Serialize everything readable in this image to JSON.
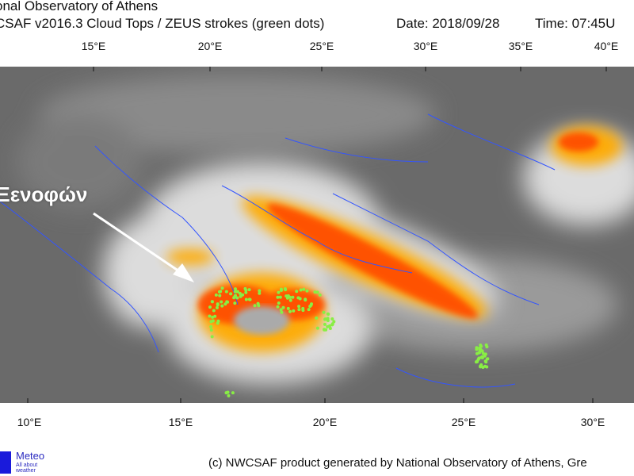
{
  "header": {
    "line1": "onal Observatory of Athens",
    "line2": "CSAF v2016.3 Cloud Tops / ZEUS strokes (green dots)",
    "date": "Date: 2018/09/28",
    "time": "Time: 07:45U"
  },
  "top_axis": [
    "15°E",
    "20°E",
    "25°E",
    "30°E",
    "35°E",
    "40°E"
  ],
  "bottom_axis": [
    "10°E",
    "15°E",
    "20°E",
    "25°E",
    "30°E"
  ],
  "annotation": "Ξενοφών",
  "logo": {
    "title": "Meteo",
    "subtitle": "All about weather"
  },
  "credit": "(c) NWCSAF product generated by National Observatory of Athens, Gre",
  "colors": {
    "coastline": "#3355ff",
    "strokes": "#88ee44",
    "cloud_top_high": "#ff4400",
    "cloud_top_mid": "#ffaa00",
    "background": "#6a6a6a"
  }
}
